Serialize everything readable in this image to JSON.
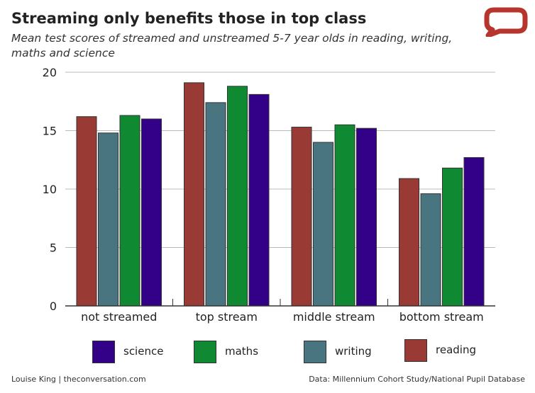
{
  "title": "Streaming only benefits those in top class",
  "subtitle": "Mean test scores of streamed and unstreamed 5-7 year olds in reading, writing, maths and science",
  "footer_left": "Louise King | theconversation.com",
  "footer_right": "Data: Millennium Cohort Study/National Pupil Database",
  "logo_icon": "speech-bubble-icon",
  "colors": {
    "reading": "#9a3a34",
    "writing": "#497580",
    "maths": "#0f8a32",
    "science": "#330088",
    "logo": "#b6362d",
    "grid": "#bbbbbb",
    "axis": "#333333"
  },
  "legend": [
    {
      "label": "science",
      "color": "#330088"
    },
    {
      "label": "maths",
      "color": "#0f8a32"
    },
    {
      "label": "writing",
      "color": "#497580"
    },
    {
      "label": "reading",
      "color": "#9a3a34"
    }
  ],
  "chart_data": {
    "type": "bar",
    "categories": [
      "not streamed",
      "top stream",
      "middle stream",
      "bottom stream"
    ],
    "series": [
      {
        "name": "reading",
        "values": [
          16.2,
          19.1,
          15.3,
          10.9
        ]
      },
      {
        "name": "writing",
        "values": [
          14.8,
          17.4,
          14.0,
          9.6
        ]
      },
      {
        "name": "maths",
        "values": [
          16.3,
          18.8,
          15.5,
          11.8
        ]
      },
      {
        "name": "science",
        "values": [
          16.0,
          18.1,
          15.2,
          12.7
        ]
      }
    ],
    "yticks": [
      0,
      5,
      10,
      15,
      20
    ],
    "ylim": [
      0,
      20
    ],
    "grid": true,
    "legend_position": "bottom",
    "xlabel": "",
    "ylabel": ""
  }
}
